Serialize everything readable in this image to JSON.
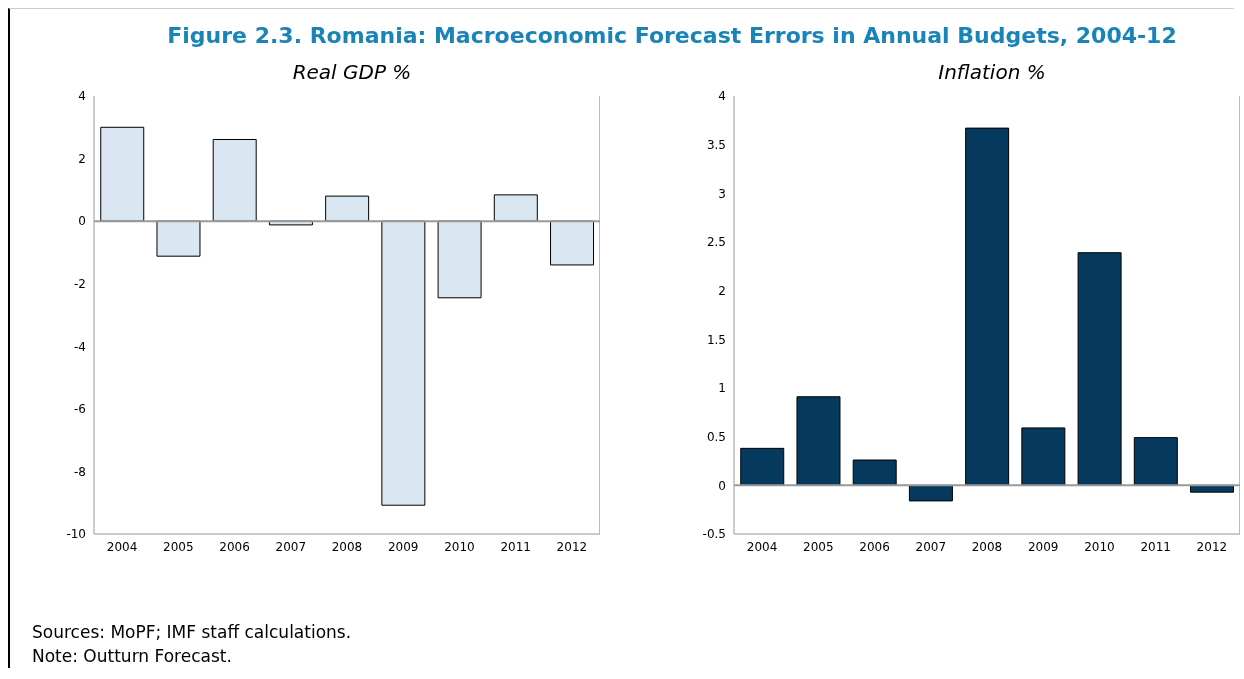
{
  "chart_data": [
    {
      "type": "bar",
      "title": "Figure 2.3. Romania: Macroeconomic Forecast Errors in Annual Budgets, 2004-12",
      "subtitle": "Real GDP %",
      "categories": [
        "2004",
        "2005",
        "2006",
        "2007",
        "2008",
        "2009",
        "2010",
        "2011",
        "2012"
      ],
      "values": [
        3.0,
        -1.12,
        2.61,
        -0.12,
        0.8,
        -9.08,
        -2.45,
        0.84,
        -1.4
      ],
      "color": "#dae6f1",
      "ylim": [
        -10,
        4
      ],
      "yticks": [
        -10,
        -8,
        -6,
        -4,
        -2,
        0,
        2,
        4
      ],
      "legend": false,
      "annotations": [
        "Sources: MoPF; IMF staff calculations.",
        "Note: Outturn Forecast."
      ]
    },
    {
      "type": "bar",
      "subtitle": "Inflation %",
      "categories": [
        "2004",
        "2005",
        "2006",
        "2007",
        "2008",
        "2009",
        "2010",
        "2011",
        "2012"
      ],
      "values": [
        0.38,
        0.91,
        0.26,
        -0.16,
        3.67,
        0.59,
        2.39,
        0.49,
        -0.07
      ],
      "color": "#053a5e",
      "ylim": [
        -0.5,
        4
      ],
      "yticks": [
        -0.5,
        0,
        0.5,
        1,
        1.5,
        2,
        2.5,
        3,
        3.5,
        4
      ],
      "legend": false
    }
  ]
}
